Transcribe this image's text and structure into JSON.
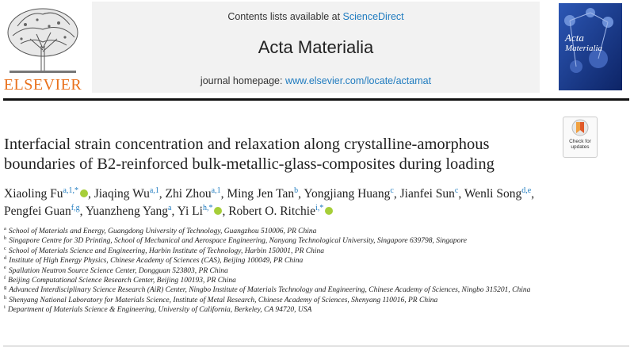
{
  "header": {
    "publisher": "ELSEVIER",
    "contents_prefix": "Contents lists available at ",
    "contents_link": "ScienceDirect",
    "journal_title": "Acta Materialia",
    "homepage_prefix": "journal homepage: ",
    "homepage_link": "www.elsevier.com/locate/actamat",
    "cover_title_1": "Acta",
    "cover_title_2": "Materialia"
  },
  "check_updates": {
    "label_1": "Check for",
    "label_2": "updates"
  },
  "article": {
    "title": "Interfacial strain concentration and relaxation along crystalline-amorphous boundaries of B2-reinforced bulk-metallic-glass-composites during loading",
    "authors": [
      {
        "name": "Xiaoling Fu",
        "sup": "a,1,*",
        "orcid": true
      },
      {
        "name": "Jiaqing Wu",
        "sup": "a,1",
        "orcid": false
      },
      {
        "name": "Zhi Zhou",
        "sup": "a,1",
        "orcid": false
      },
      {
        "name": "Ming Jen Tan",
        "sup": "b",
        "orcid": false
      },
      {
        "name": "Yongjiang Huang",
        "sup": "c",
        "orcid": false
      },
      {
        "name": "Jianfei Sun",
        "sup": "c",
        "orcid": false
      },
      {
        "name": "Wenli Song",
        "sup": "d,e",
        "orcid": false
      },
      {
        "name": "Pengfei Guan",
        "sup": "f,g",
        "orcid": false
      },
      {
        "name": "Yuanzheng Yang",
        "sup": "a",
        "orcid": false
      },
      {
        "name": "Yi Li",
        "sup": "h,*",
        "orcid": true
      },
      {
        "name": "Robert O. Ritchie",
        "sup": "i,*",
        "orcid": true
      }
    ],
    "affiliations": [
      {
        "key": "a",
        "text": "School of Materials and Energy, Guangdong University of Technology, Guangzhou 510006, PR China"
      },
      {
        "key": "b",
        "text": "Singapore Centre for 3D Printing, School of Mechanical and Aerospace Engineering, Nanyang Technological University, Singapore 639798, Singapore"
      },
      {
        "key": "c",
        "text": "School of Materials Science and Engineering, Harbin Institute of Technology, Harbin 150001, PR China"
      },
      {
        "key": "d",
        "text": "Institute of High Energy Physics, Chinese Academy of Sciences (CAS), Beijing 100049, PR China"
      },
      {
        "key": "e",
        "text": "Spallation Neutron Source Science Center, Dongguan 523803, PR China"
      },
      {
        "key": "f",
        "text": "Beijing Computational Science Research Center, Beijing 100193, PR China"
      },
      {
        "key": "g",
        "text": "Advanced Interdisciplinary Science Research (AiR) Center, Ningbo Institute of Materials Technology and Engineering, Chinese Academy of Sciences, Ningbo 315201, China"
      },
      {
        "key": "h",
        "text": "Shenyang National Laboratory for Materials Science, Institute of Metal Research, Chinese Academy of Sciences, Shenyang 110016, PR China"
      },
      {
        "key": "i",
        "text": "Department of Materials Science & Engineering, University of California, Berkeley, CA 94720, USA"
      }
    ]
  },
  "colors": {
    "link": "#1f7bbf",
    "elsevier_orange": "#e9711c",
    "orcid_green": "#a6ce39",
    "cover_blue": "#1b3f8f"
  }
}
